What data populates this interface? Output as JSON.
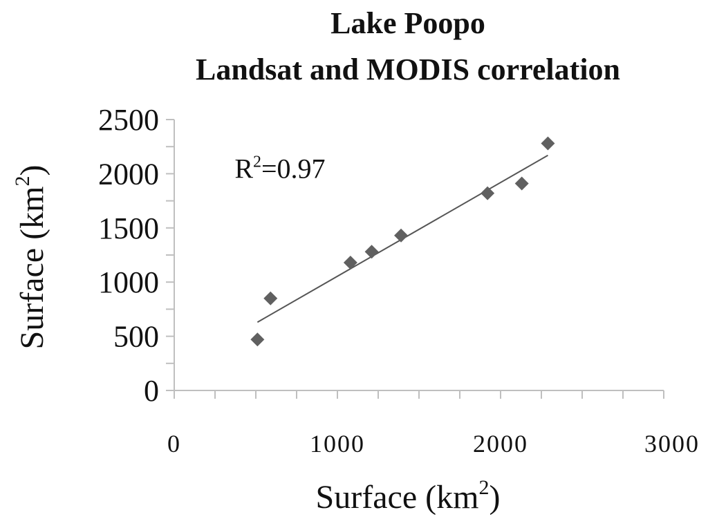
{
  "chart_data": {
    "type": "scatter",
    "title_lines": [
      "Lake Poopo",
      "Landsat and MODIS correlation"
    ],
    "xlabel": "Surface (km",
    "xlabel_sup": "2",
    "xlabel_end": ")",
    "ylabel": "Surface (km",
    "ylabel_sup": "2",
    "ylabel_end": ")",
    "xlim": [
      0,
      3000
    ],
    "ylim": [
      0,
      2500
    ],
    "x_ticks": [
      0,
      1000,
      2000,
      3000
    ],
    "x_minor_step": 250,
    "y_ticks": [
      0,
      500,
      1000,
      1500,
      2000,
      2500
    ],
    "y_minor_step": 250,
    "grid": false,
    "legend": "none",
    "marker": "diamond",
    "marker_color": "#606060",
    "trend_color": "#555555",
    "series": [
      {
        "x": [
          510,
          590,
          1080,
          1210,
          1390,
          1920,
          2130,
          2290
        ],
        "y": [
          470,
          850,
          1180,
          1280,
          1430,
          1820,
          1910,
          2280
        ]
      }
    ],
    "trendline": {
      "x": [
        510,
        2290
      ],
      "y": [
        630,
        2170
      ]
    },
    "annotation": {
      "text_start": "R",
      "text_sup": "2",
      "text_end": "=0.97",
      "x": 370,
      "y": 2050
    }
  }
}
